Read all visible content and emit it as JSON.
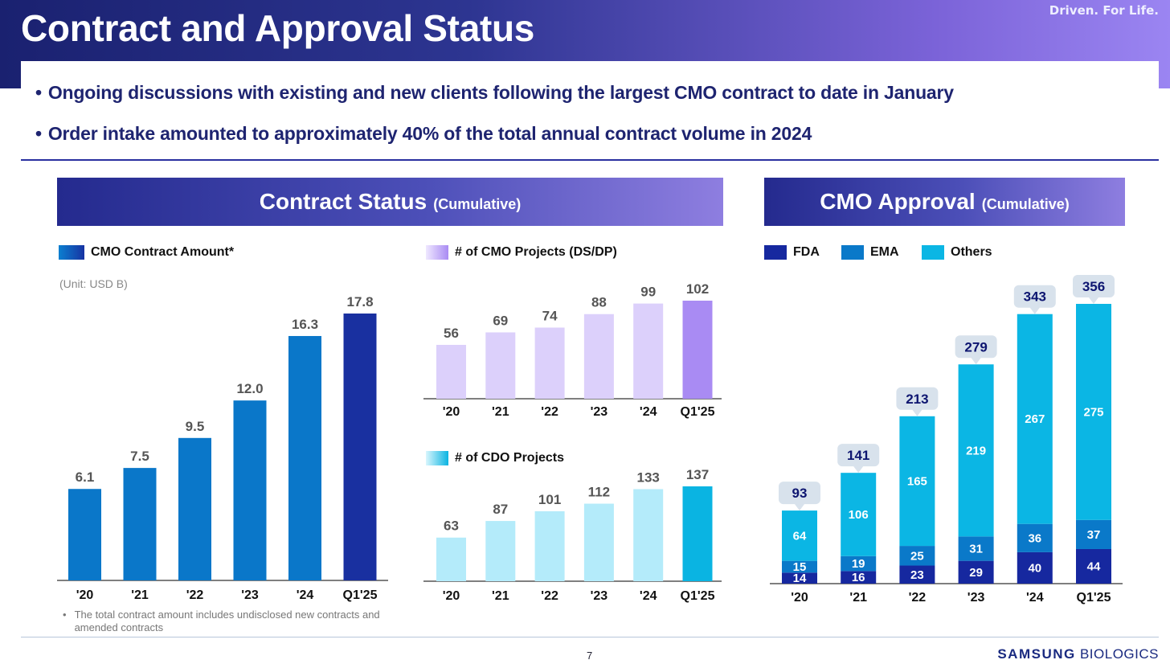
{
  "header": {
    "title": "Contract and Approval Status",
    "tagline": "Driven. For Life."
  },
  "bullets": [
    "Ongoing discussions with existing and new clients following the largest CMO contract to date in January",
    "Order intake amounted to approximately 40% of the total annual contract volume in 2024"
  ],
  "sections": {
    "contract": {
      "title": "Contract Status",
      "subtitle": "(Cumulative)"
    },
    "approval": {
      "title": "CMO Approval",
      "subtitle": "(Cumulative)"
    }
  },
  "legends": {
    "contract_amount": "CMO Contract Amount*",
    "cmo_projects": "# of CMO Projects (DS/DP)",
    "cdo_projects": "# of CDO Projects",
    "fda": "FDA",
    "ema": "EMA",
    "others": "Others"
  },
  "unit": "(Unit: USD B)",
  "footnote": "The total contract amount includes undisclosed new contracts and amended contracts",
  "footer": {
    "page": "7",
    "logo_bold": "SAMSUNG",
    "logo_rest": "BIOLOGICS"
  },
  "colors": {
    "contract_bar": "#0a77c9",
    "contract_bar_last": "#1930a0",
    "cmo_bar": "#dcd0fb",
    "cmo_bar_last": "#a98bf3",
    "cdo_bar": "#b4ebfa",
    "cdo_bar_last": "#0ab4e2",
    "fda": "#16289f",
    "ema": "#0a79c9",
    "others": "#0bb6e4",
    "callout": "#d8e2ec"
  },
  "chart_data": [
    {
      "id": "contract_amount",
      "type": "bar",
      "categories": [
        "'20",
        "'21",
        "'22",
        "'23",
        "'24",
        "Q1'25"
      ],
      "series": [
        {
          "name": "CMO Contract Amount*",
          "values": [
            6.1,
            7.5,
            9.5,
            12.0,
            16.3,
            17.8
          ],
          "labels": [
            "6.1",
            "7.5",
            "9.5",
            "12.0",
            "16.3",
            "17.8"
          ]
        }
      ],
      "ylabel": "",
      "ylim": [
        0,
        17.8
      ]
    },
    {
      "id": "cmo_projects",
      "type": "bar",
      "categories": [
        "'20",
        "'21",
        "'22",
        "'23",
        "'24",
        "Q1'25"
      ],
      "series": [
        {
          "name": "# of CMO Projects (DS/DP)",
          "values": [
            56,
            69,
            74,
            88,
            99,
            102
          ]
        }
      ],
      "ylim": [
        0,
        102
      ]
    },
    {
      "id": "cdo_projects",
      "type": "bar",
      "categories": [
        "'20",
        "'21",
        "'22",
        "'23",
        "'24",
        "Q1'25"
      ],
      "series": [
        {
          "name": "# of CDO Projects",
          "values": [
            63,
            87,
            101,
            112,
            133,
            137
          ]
        }
      ],
      "ylim": [
        0,
        137
      ]
    },
    {
      "id": "cmo_approval",
      "type": "bar",
      "stacked": true,
      "categories": [
        "'20",
        "'21",
        "'22",
        "'23",
        "'24",
        "Q1'25"
      ],
      "series": [
        {
          "name": "FDA",
          "values": [
            14,
            16,
            23,
            29,
            40,
            44
          ]
        },
        {
          "name": "EMA",
          "values": [
            15,
            19,
            25,
            31,
            36,
            37
          ]
        },
        {
          "name": "Others",
          "values": [
            64,
            106,
            165,
            219,
            267,
            275
          ]
        }
      ],
      "totals": [
        93,
        141,
        213,
        279,
        343,
        356
      ],
      "ylim": [
        0,
        356
      ]
    }
  ]
}
